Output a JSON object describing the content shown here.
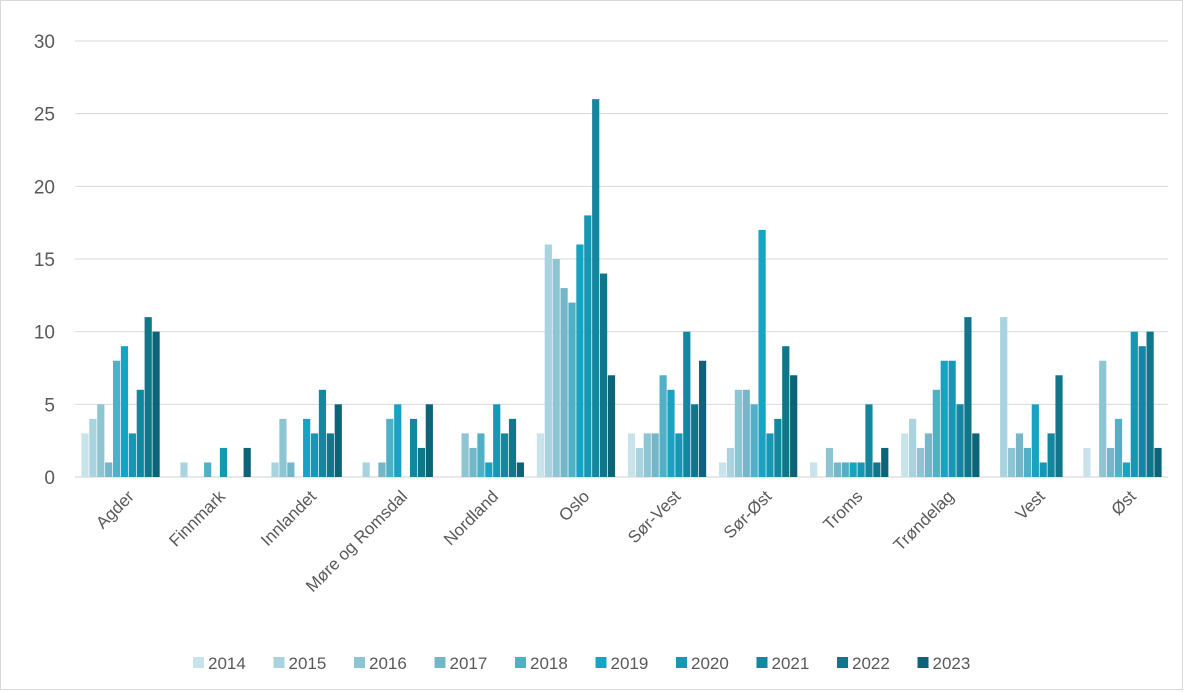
{
  "chart_data": {
    "type": "bar",
    "title": "",
    "xlabel": "",
    "ylabel": "",
    "ylim": [
      0,
      30
    ],
    "yticks": [
      0,
      5,
      10,
      15,
      20,
      25,
      30
    ],
    "grid": true,
    "legend_position": "bottom",
    "categories": [
      "Agder",
      "Finnmark",
      "Innlandet",
      "Møre og Romsdal",
      "Nordland",
      "Oslo",
      "Sør-Vest",
      "Sør-Øst",
      "Troms",
      "Trøndelag",
      "Vest",
      "Øst"
    ],
    "series": [
      {
        "name": "2014",
        "color": "#c9e3ea",
        "values": [
          3,
          0,
          0,
          0,
          0,
          3,
          3,
          1,
          1,
          3,
          0,
          2
        ]
      },
      {
        "name": "2015",
        "color": "#a9d3de",
        "values": [
          4,
          1,
          1,
          1,
          0,
          16,
          2,
          2,
          0,
          4,
          11,
          0
        ]
      },
      {
        "name": "2016",
        "color": "#8ec5d3",
        "values": [
          5,
          0,
          4,
          0,
          3,
          15,
          3,
          6,
          2,
          2,
          2,
          8
        ]
      },
      {
        "name": "2017",
        "color": "#75b7c9",
        "values": [
          1,
          0,
          1,
          1,
          2,
          13,
          3,
          6,
          1,
          3,
          3,
          2
        ]
      },
      {
        "name": "2018",
        "color": "#4fb0c6",
        "values": [
          8,
          1,
          0,
          4,
          3,
          12,
          7,
          5,
          1,
          6,
          2,
          4
        ]
      },
      {
        "name": "2019",
        "color": "#17a3c2",
        "values": [
          9,
          0,
          4,
          5,
          1,
          16,
          6,
          17,
          1,
          8,
          5,
          1
        ]
      },
      {
        "name": "2020",
        "color": "#1697b3",
        "values": [
          3,
          2,
          3,
          0,
          5,
          18,
          3,
          3,
          1,
          8,
          1,
          10
        ]
      },
      {
        "name": "2021",
        "color": "#1487a0",
        "values": [
          6,
          0,
          6,
          4,
          3,
          26,
          10,
          4,
          5,
          5,
          3,
          9
        ]
      },
      {
        "name": "2022",
        "color": "#107689",
        "values": [
          11,
          0,
          3,
          2,
          4,
          14,
          5,
          9,
          1,
          11,
          7,
          10
        ]
      },
      {
        "name": "2023",
        "color": "#0d6377",
        "values": [
          10,
          2,
          5,
          5,
          1,
          7,
          8,
          7,
          2,
          3,
          0,
          2
        ]
      }
    ]
  }
}
